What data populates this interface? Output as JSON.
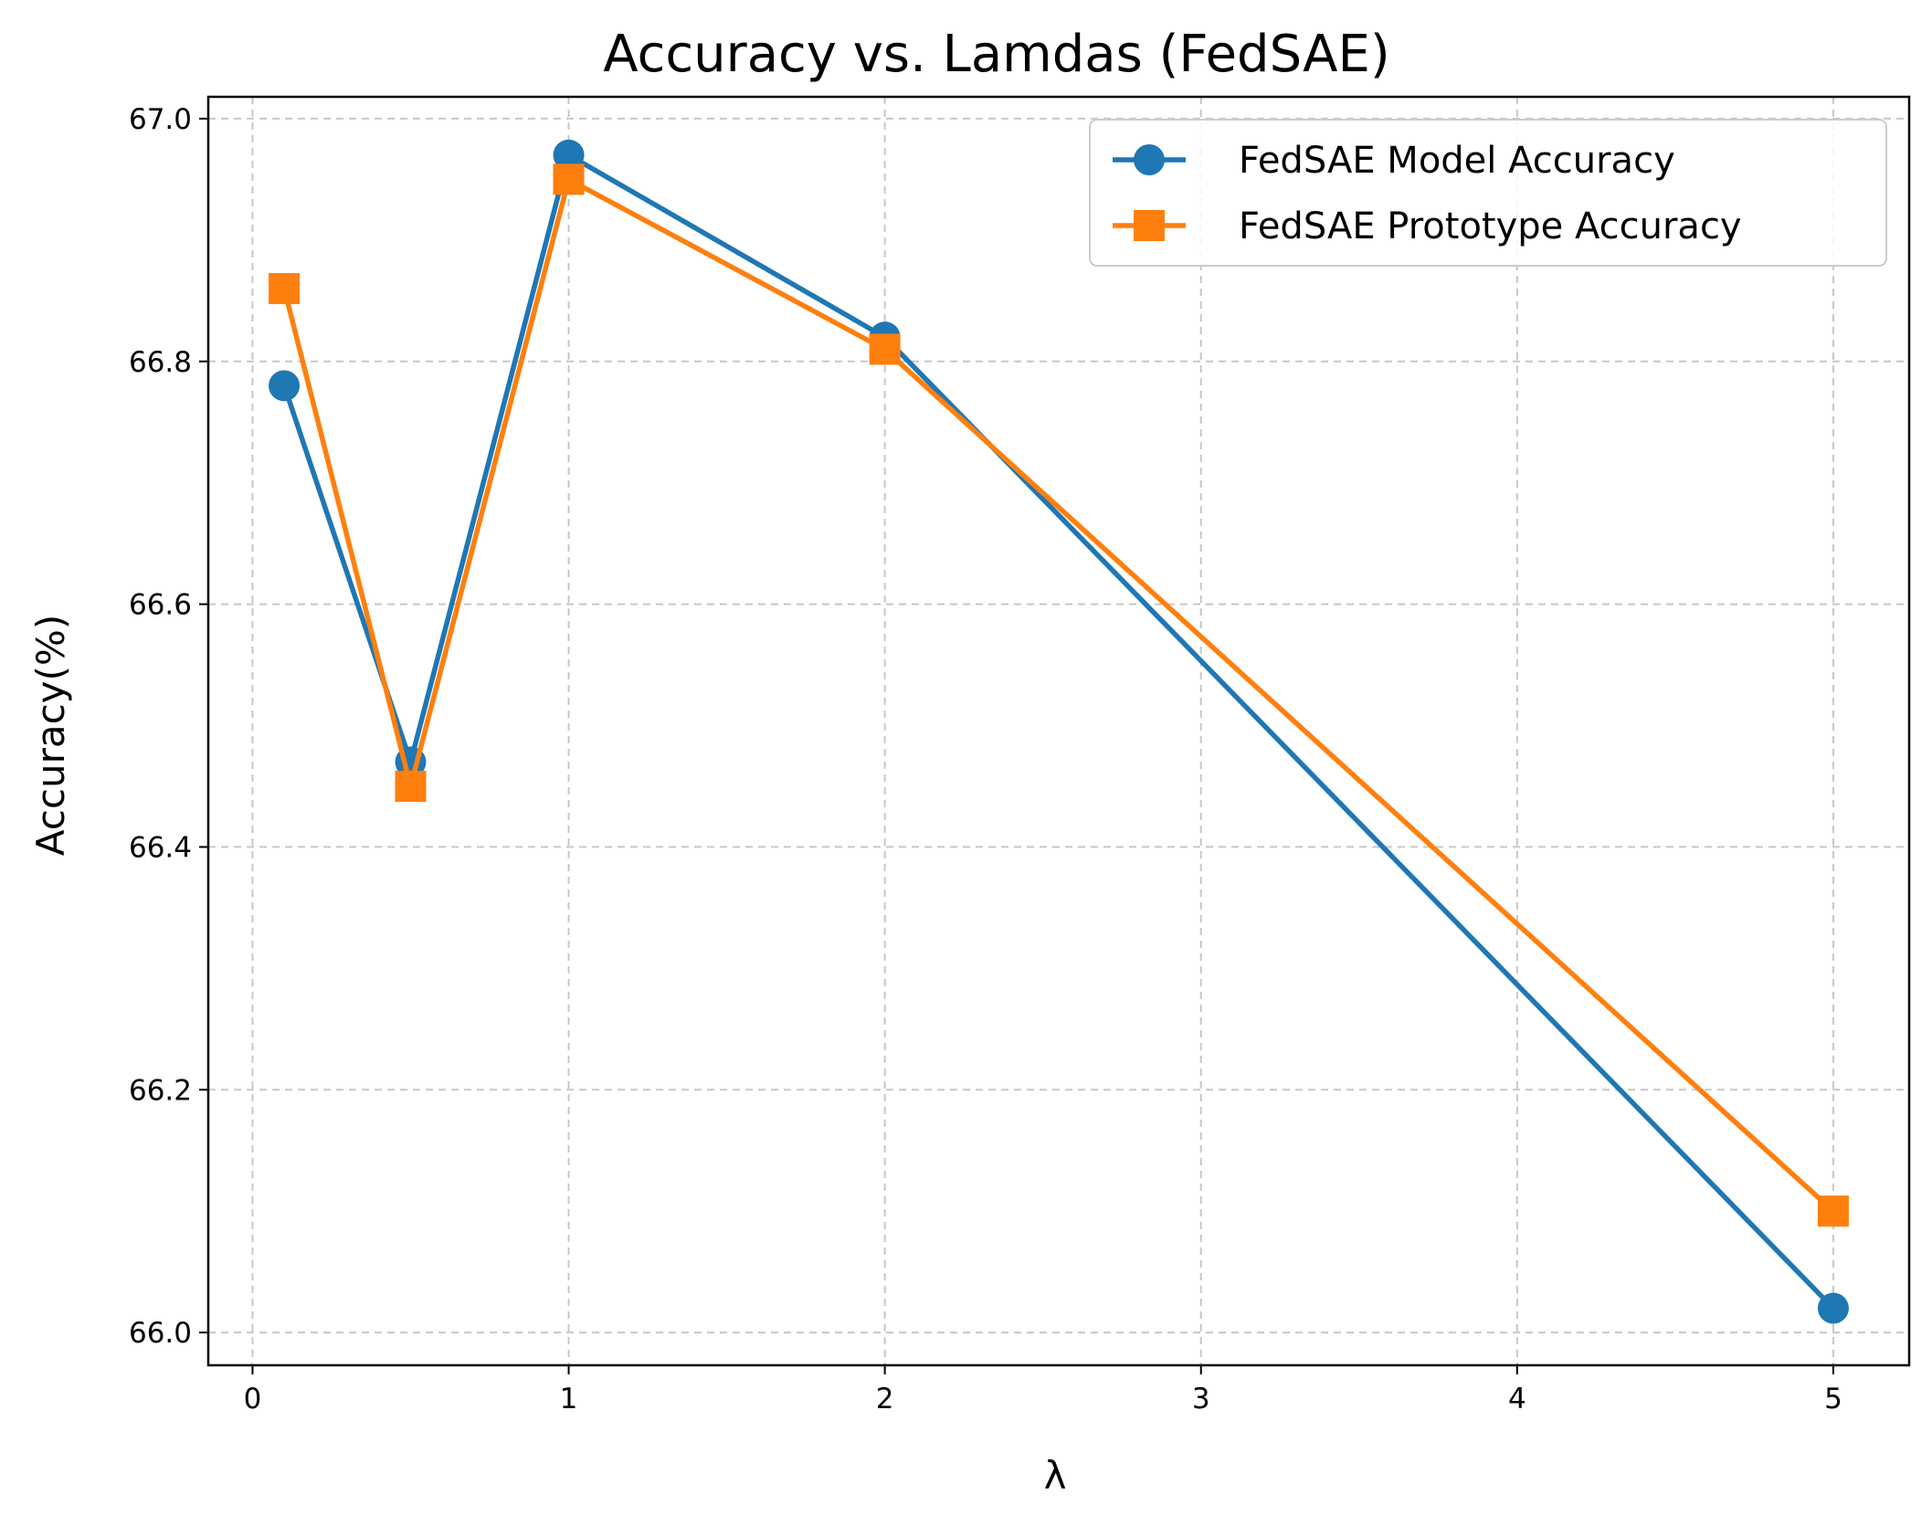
{
  "chart_data": {
    "type": "line",
    "title": "Accuracy vs. Lamdas (FedSAE)",
    "xlabel": "λ",
    "ylabel": "Accuracy(%)",
    "xlim": [
      -0.14,
      5.24
    ],
    "ylim": [
      65.973,
      67.018
    ],
    "xticks": [
      0,
      1,
      2,
      3,
      4,
      5
    ],
    "xtick_labels": [
      "0",
      "1",
      "2",
      "3",
      "4",
      "5"
    ],
    "yticks": [
      66.0,
      66.2,
      66.4,
      66.6,
      66.8,
      67.0
    ],
    "ytick_labels": [
      "66.0",
      "66.2",
      "66.4",
      "66.6",
      "66.8",
      "67.0"
    ],
    "grid": true,
    "legend_position": "upper right",
    "x": [
      0.1,
      0.5,
      1,
      2,
      5
    ],
    "series": [
      {
        "name": "FedSAE Model Accuracy",
        "values": [
          66.78,
          66.47,
          66.97,
          66.82,
          66.02
        ],
        "color": "#1f77b4",
        "marker": "circle"
      },
      {
        "name": "FedSAE Prototype Accuracy",
        "values": [
          66.86,
          66.45,
          66.95,
          66.81,
          66.1
        ],
        "color": "#ff7f0e",
        "marker": "square"
      }
    ]
  }
}
